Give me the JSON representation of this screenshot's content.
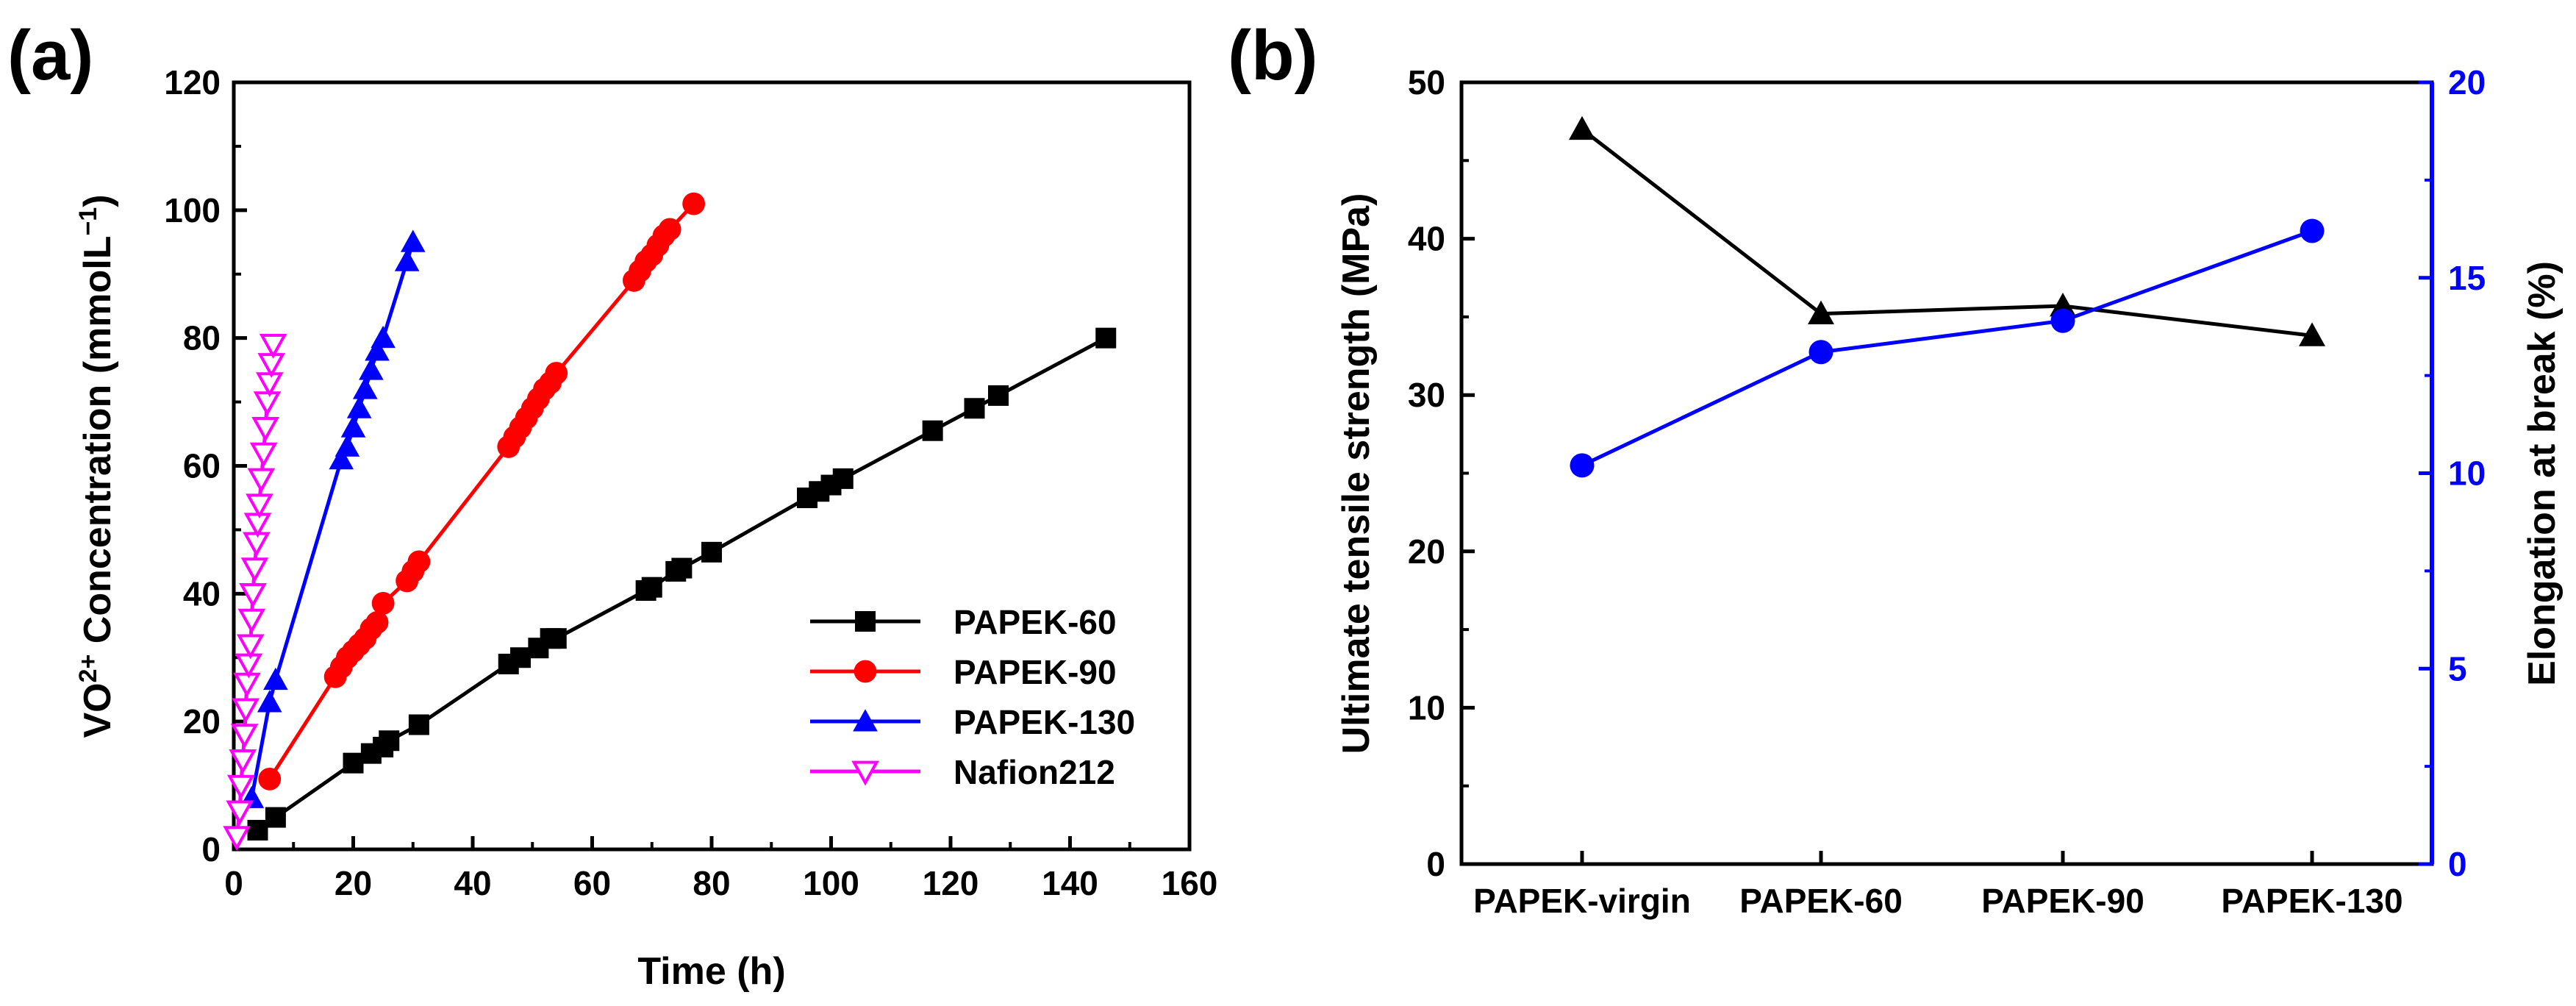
{
  "chart_data": [
    {
      "panel": "(a)",
      "type": "line",
      "xlabel": "Time (h)",
      "ylabel_parts": [
        "VO",
        "2+",
        " Concentration (mmolL",
        "−1",
        ")"
      ],
      "xlim": [
        0,
        160
      ],
      "ylim": [
        0,
        120
      ],
      "xticks": [
        0,
        20,
        40,
        60,
        80,
        100,
        120,
        140,
        160
      ],
      "yticks": [
        0,
        20,
        40,
        60,
        80,
        100,
        120
      ],
      "legend_position": "lower-right",
      "series": [
        {
          "name": "PAPEK-60",
          "color": "#000000",
          "marker": "square",
          "x": [
            4,
            7,
            20,
            23,
            25,
            26,
            31,
            46,
            48,
            51,
            53,
            54,
            69,
            70,
            74,
            75,
            80,
            96,
            98,
            100,
            102,
            117,
            124,
            128,
            146
          ],
          "y": [
            3,
            5,
            13.5,
            15,
            16,
            17,
            19.5,
            29,
            30,
            31.5,
            33,
            33,
            40.5,
            41,
            43.5,
            44,
            46.5,
            55,
            56,
            57,
            58,
            65.5,
            69,
            71,
            80
          ]
        },
        {
          "name": "PAPEK-90",
          "color": "#ff0000",
          "marker": "circle",
          "x": [
            6,
            17,
            18,
            19,
            20,
            21,
            22,
            23,
            24,
            25,
            29,
            30,
            31,
            46,
            47,
            48,
            49,
            50,
            51,
            52,
            53,
            54,
            67,
            68,
            69,
            70,
            71,
            72,
            73,
            77
          ],
          "y": [
            11,
            27,
            28.5,
            30,
            31,
            32,
            33,
            34.5,
            35.5,
            38.5,
            42,
            43.5,
            45,
            63,
            64.5,
            66,
            67.5,
            69,
            70.5,
            72,
            73,
            74.5,
            89,
            90.5,
            92,
            93,
            94.5,
            96,
            97,
            101
          ]
        },
        {
          "name": "PAPEK-130",
          "color": "#0000ff",
          "marker": "triangle-up",
          "x": [
            3,
            6,
            7,
            18,
            19,
            20,
            21,
            22,
            23,
            24,
            25,
            29,
            30
          ],
          "y": [
            8,
            23,
            26.5,
            61,
            63,
            66,
            69,
            72,
            75,
            78,
            80,
            92,
            95
          ]
        },
        {
          "name": "Nafion212",
          "color": "#ff00ff",
          "marker": "triangle-down-open",
          "x": [
            0.5,
            1,
            1.2,
            1.5,
            1.8,
            2,
            2.2,
            2.5,
            2.8,
            3,
            3.2,
            3.5,
            3.8,
            4,
            4.3,
            4.6,
            5,
            5.3,
            5.6,
            6,
            6.3,
            6.6
          ],
          "y": [
            2,
            6,
            10,
            14,
            18,
            22,
            26,
            29,
            32,
            36,
            40,
            44,
            48,
            51,
            54,
            58,
            62,
            66,
            70,
            73,
            76,
            79
          ]
        }
      ]
    },
    {
      "panel": "(b)",
      "type": "line",
      "categories": [
        "PAPEK-virgin",
        "PAPEK-60",
        "PAPEK-90",
        "PAPEK-130"
      ],
      "ylabel_left": "Ultimate tensile strength (MPa)",
      "ylabel_right": "Elongation at break (%)",
      "ylim_left": [
        0,
        50
      ],
      "ylim_right": [
        0,
        20
      ],
      "yticks_left": [
        0,
        10,
        20,
        30,
        40,
        50
      ],
      "yticks_right": [
        0,
        5,
        10,
        15,
        20
      ],
      "series": [
        {
          "name": "Ultimate tensile strength",
          "axis": "left",
          "color": "#000000",
          "marker": "triangle-up",
          "values": [
            47,
            35.2,
            35.7,
            33.8
          ]
        },
        {
          "name": "Elongation at break",
          "axis": "right",
          "color": "#0000ff",
          "marker": "circle",
          "values": [
            10.2,
            13.1,
            13.9,
            16.2
          ]
        }
      ]
    }
  ],
  "panel_label_color": "#1a1aff",
  "right_axis_color": "#0000ff"
}
